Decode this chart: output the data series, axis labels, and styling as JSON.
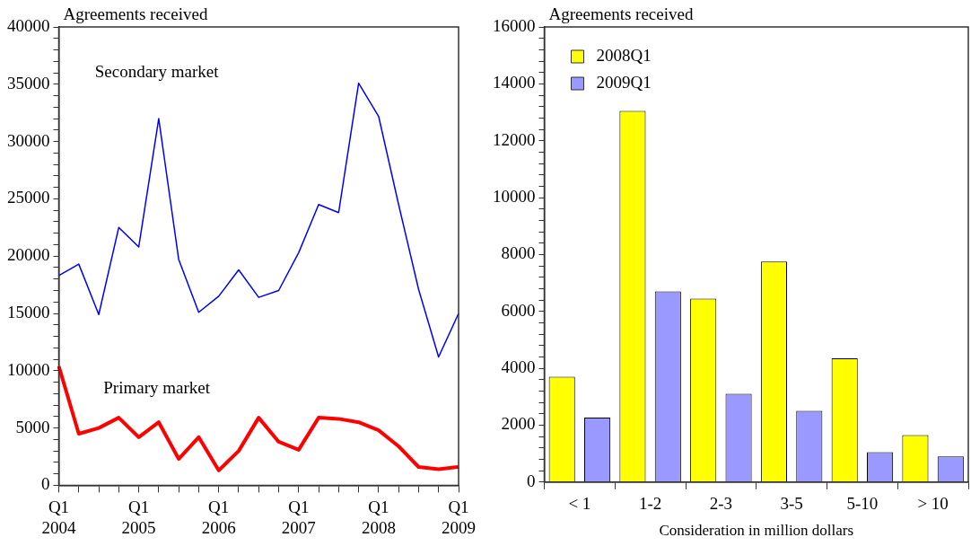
{
  "chart_data": [
    {
      "type": "line",
      "title": "Agreements received",
      "categories": [
        "Q1 2004",
        null,
        null,
        null,
        "Q1 2005",
        null,
        null,
        null,
        "Q1 2006",
        null,
        null,
        null,
        "Q1 2007",
        null,
        null,
        null,
        "Q1 2008",
        null,
        null,
        null,
        "Q1 2009"
      ],
      "series": [
        {
          "name": "Secondary market",
          "color": "#0000ff",
          "values": [
            18300,
            19300,
            14900,
            22500,
            20800,
            32000,
            19700,
            15100,
            16500,
            18800,
            16400,
            17000,
            20300,
            24500,
            23800,
            35100,
            32200,
            24500,
            17100,
            11200,
            15000
          ]
        },
        {
          "name": "Primary market",
          "color": "#ff0000",
          "values": [
            10400,
            4500,
            5000,
            5900,
            4200,
            5500,
            2300,
            4200,
            1300,
            3000,
            5900,
            3800,
            3100,
            5900,
            5800,
            5500,
            4800,
            3400,
            1600,
            1400,
            1600
          ]
        }
      ],
      "ylim": [
        0,
        40000
      ],
      "yticks": [
        0,
        {
          "value": 1000,
          "label": null
        },
        {
          "value": 2000,
          "label": null
        },
        {
          "value": 3000,
          "label": null
        },
        {
          "value": 4000,
          "label": null
        },
        5000,
        {
          "value": 6000,
          "label": null
        },
        {
          "value": 7000,
          "label": null
        },
        {
          "value": 8000,
          "label": null
        },
        {
          "value": 9000,
          "label": null
        },
        10000,
        {
          "value": 11000,
          "label": null
        },
        {
          "value": 12000,
          "label": null
        },
        {
          "value": 13000,
          "label": null
        },
        {
          "value": 14000,
          "label": null
        },
        15000,
        {
          "value": 16000,
          "label": null
        },
        {
          "value": 17000,
          "label": null
        },
        {
          "value": 18000,
          "label": null
        },
        {
          "value": 19000,
          "label": null
        },
        20000,
        {
          "value": 21000,
          "label": null
        },
        {
          "value": 22000,
          "label": null
        },
        {
          "value": 23000,
          "label": null
        },
        {
          "value": 24000,
          "label": null
        },
        25000,
        {
          "value": 26000,
          "label": null
        },
        {
          "value": 27000,
          "label": null
        },
        {
          "value": 28000,
          "label": null
        },
        {
          "value": 29000,
          "label": null
        },
        30000,
        {
          "value": 31000,
          "label": null
        },
        {
          "value": 32000,
          "label": null
        },
        {
          "value": 33000,
          "label": null
        },
        {
          "value": 34000,
          "label": null
        },
        35000,
        {
          "value": 36000,
          "label": null
        },
        {
          "value": 37000,
          "label": null
        },
        {
          "value": 38000,
          "label": null
        },
        {
          "value": 39000,
          "label": null
        },
        40000
      ],
      "grid": false,
      "legend": false
    },
    {
      "type": "bar",
      "title": "Agreements received",
      "xlabel": "Consideration in million dollars",
      "categories": [
        "< 1",
        "1-2",
        "2-3",
        "3-5",
        "5-10",
        "> 10"
      ],
      "series": [
        {
          "name": "2008Q1",
          "color": "#ffff00",
          "values": [
            3700,
            13050,
            6450,
            7750,
            4350,
            1650
          ]
        },
        {
          "name": "2009Q1",
          "color": "#9999ff",
          "values": [
            2270,
            6700,
            3100,
            2500,
            1050,
            900
          ]
        }
      ],
      "ylim": [
        0,
        16000
      ],
      "yticks": [
        0,
        {
          "value": 400,
          "label": null
        },
        {
          "value": 800,
          "label": null
        },
        {
          "value": 1200,
          "label": null
        },
        {
          "value": 1600,
          "label": null
        },
        2000,
        {
          "value": 2400,
          "label": null
        },
        {
          "value": 2800,
          "label": null
        },
        {
          "value": 3200,
          "label": null
        },
        {
          "value": 3600,
          "label": null
        },
        4000,
        {
          "value": 4400,
          "label": null
        },
        {
          "value": 4800,
          "label": null
        },
        {
          "value": 5200,
          "label": null
        },
        {
          "value": 5600,
          "label": null
        },
        6000,
        {
          "value": 6400,
          "label": null
        },
        {
          "value": 6800,
          "label": null
        },
        {
          "value": 7200,
          "label": null
        },
        {
          "value": 7600,
          "label": null
        },
        8000,
        {
          "value": 8400,
          "label": null
        },
        {
          "value": 8800,
          "label": null
        },
        {
          "value": 9200,
          "label": null
        },
        {
          "value": 9600,
          "label": null
        },
        10000,
        {
          "value": 10400,
          "label": null
        },
        {
          "value": 10800,
          "label": null
        },
        {
          "value": 11200,
          "label": null
        },
        {
          "value": 11600,
          "label": null
        },
        12000,
        {
          "value": 12400,
          "label": null
        },
        {
          "value": 12800,
          "label": null
        },
        {
          "value": 13200,
          "label": null
        },
        {
          "value": 13600,
          "label": null
        },
        14000,
        {
          "value": 14400,
          "label": null
        },
        {
          "value": 14800,
          "label": null
        },
        {
          "value": 15200,
          "label": null
        },
        {
          "value": 15600,
          "label": null
        },
        16000
      ],
      "grid": false,
      "legend": "top left"
    }
  ]
}
